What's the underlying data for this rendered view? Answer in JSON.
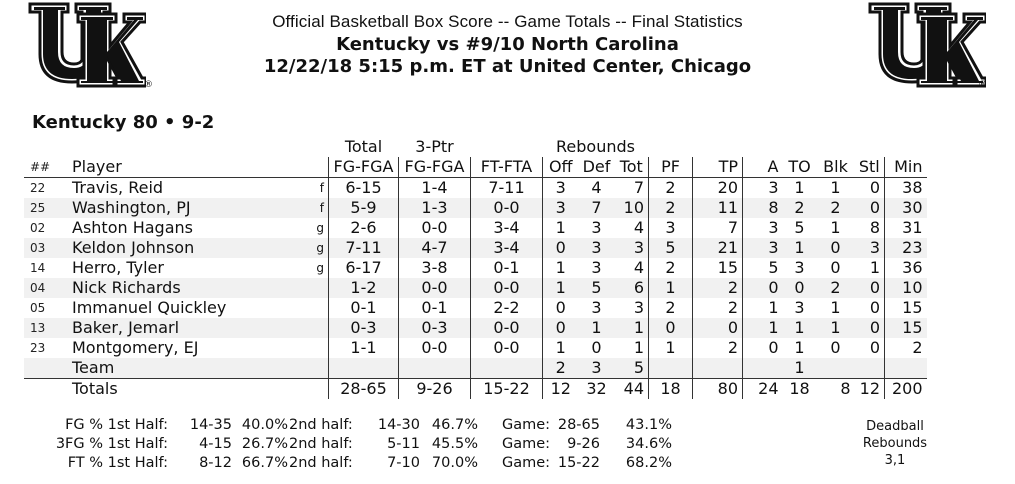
{
  "header": {
    "line1": "Official Basketball Box Score -- Game Totals -- Final Statistics",
    "line2": "Kentucky vs #9/10 North Carolina",
    "line3": "12/22/18 5:15 p.m. ET at United Center, Chicago"
  },
  "logo": {
    "text": "UK",
    "reg": "®"
  },
  "team_title": "Kentucky 80 • 9-2",
  "group_headers": {
    "total": "Total",
    "three": "3-Ptr",
    "rebounds": "Rebounds"
  },
  "columns": {
    "num": "##",
    "player": "Player",
    "fg": "FG-FGA",
    "fg3": "FG-FGA",
    "ft": "FT-FTA",
    "off": "Off",
    "def": "Def",
    "tot": "Tot",
    "pf": "PF",
    "tp": "TP",
    "a": "A",
    "to": "TO",
    "blk": "Blk",
    "stl": "Stl",
    "min": "Min"
  },
  "players": [
    {
      "num": "22",
      "name": "Travis, Reid",
      "pos": "f",
      "fg": "6-15",
      "fg3": "1-4",
      "ft": "7-11",
      "off": "3",
      "def": "4",
      "tot": "7",
      "pf": "2",
      "tp": "20",
      "a": "3",
      "to": "1",
      "blk": "1",
      "stl": "0",
      "min": "38"
    },
    {
      "num": "25",
      "name": "Washington, PJ",
      "pos": "f",
      "fg": "5-9",
      "fg3": "1-3",
      "ft": "0-0",
      "off": "3",
      "def": "7",
      "tot": "10",
      "pf": "2",
      "tp": "11",
      "a": "8",
      "to": "2",
      "blk": "2",
      "stl": "0",
      "min": "30"
    },
    {
      "num": "02",
      "name": "Ashton Hagans",
      "pos": "g",
      "fg": "2-6",
      "fg3": "0-0",
      "ft": "3-4",
      "off": "1",
      "def": "3",
      "tot": "4",
      "pf": "3",
      "tp": "7",
      "a": "3",
      "to": "5",
      "blk": "1",
      "stl": "8",
      "min": "31"
    },
    {
      "num": "03",
      "name": "Keldon Johnson",
      "pos": "g",
      "fg": "7-11",
      "fg3": "4-7",
      "ft": "3-4",
      "off": "0",
      "def": "3",
      "tot": "3",
      "pf": "5",
      "tp": "21",
      "a": "3",
      "to": "1",
      "blk": "0",
      "stl": "3",
      "min": "23"
    },
    {
      "num": "14",
      "name": "Herro, Tyler",
      "pos": "g",
      "fg": "6-17",
      "fg3": "3-8",
      "ft": "0-1",
      "off": "1",
      "def": "3",
      "tot": "4",
      "pf": "2",
      "tp": "15",
      "a": "5",
      "to": "3",
      "blk": "0",
      "stl": "1",
      "min": "36"
    },
    {
      "num": "04",
      "name": "Nick Richards",
      "pos": "",
      "fg": "1-2",
      "fg3": "0-0",
      "ft": "0-0",
      "off": "1",
      "def": "5",
      "tot": "6",
      "pf": "1",
      "tp": "2",
      "a": "0",
      "to": "0",
      "blk": "2",
      "stl": "0",
      "min": "10"
    },
    {
      "num": "05",
      "name": "Immanuel  Quickley",
      "pos": "",
      "fg": "0-1",
      "fg3": "0-1",
      "ft": "2-2",
      "off": "0",
      "def": "3",
      "tot": "3",
      "pf": "2",
      "tp": "2",
      "a": "1",
      "to": "3",
      "blk": "1",
      "stl": "0",
      "min": "15"
    },
    {
      "num": "13",
      "name": "Baker, Jemarl",
      "pos": "",
      "fg": "0-3",
      "fg3": "0-3",
      "ft": "0-0",
      "off": "0",
      "def": "1",
      "tot": "1",
      "pf": "0",
      "tp": "0",
      "a": "1",
      "to": "1",
      "blk": "1",
      "stl": "0",
      "min": "15"
    },
    {
      "num": "23",
      "name": "Montgomery, EJ",
      "pos": "",
      "fg": "1-1",
      "fg3": "0-0",
      "ft": "0-0",
      "off": "1",
      "def": "0",
      "tot": "1",
      "pf": "1",
      "tp": "2",
      "a": "0",
      "to": "1",
      "blk": "0",
      "stl": "0",
      "min": "2"
    },
    {
      "num": "",
      "name": "Team",
      "pos": "",
      "fg": "",
      "fg3": "",
      "ft": "",
      "off": "2",
      "def": "3",
      "tot": "5",
      "pf": "",
      "tp": "",
      "a": "",
      "to": "1",
      "blk": "",
      "stl": "",
      "min": ""
    }
  ],
  "totals": {
    "label": "Totals",
    "fg": "28-65",
    "fg3": "9-26",
    "ft": "15-22",
    "off": "12",
    "def": "32",
    "tot": "44",
    "pf": "18",
    "tp": "80",
    "a": "24",
    "to": "18",
    "blk": "8",
    "stl": "12",
    "min": "200"
  },
  "shooting": [
    {
      "label": "FG % 1st Half:",
      "h1": "14-35",
      "h1p": "40.0%",
      "h2label": "2nd half:",
      "h2": "14-30",
      "h2p": "46.7%",
      "glabel": "Game:",
      "g": "28-65",
      "gp": "43.1%"
    },
    {
      "label": "3FG % 1st Half:",
      "h1": "4-15",
      "h1p": "26.7%",
      "h2label": "2nd half:",
      "h2": "5-11",
      "h2p": "45.5%",
      "glabel": "Game:",
      "g": "9-26",
      "gp": "34.6%"
    },
    {
      "label": "FT % 1st Half:",
      "h1": "8-12",
      "h1p": "66.7%",
      "h2label": "2nd half:",
      "h2": "7-10",
      "h2p": "70.0%",
      "glabel": "Game:",
      "g": "15-22",
      "gp": "68.2%"
    }
  ],
  "deadball": {
    "line1": "Deadball",
    "line2": "Rebounds",
    "line3": "3,1"
  }
}
